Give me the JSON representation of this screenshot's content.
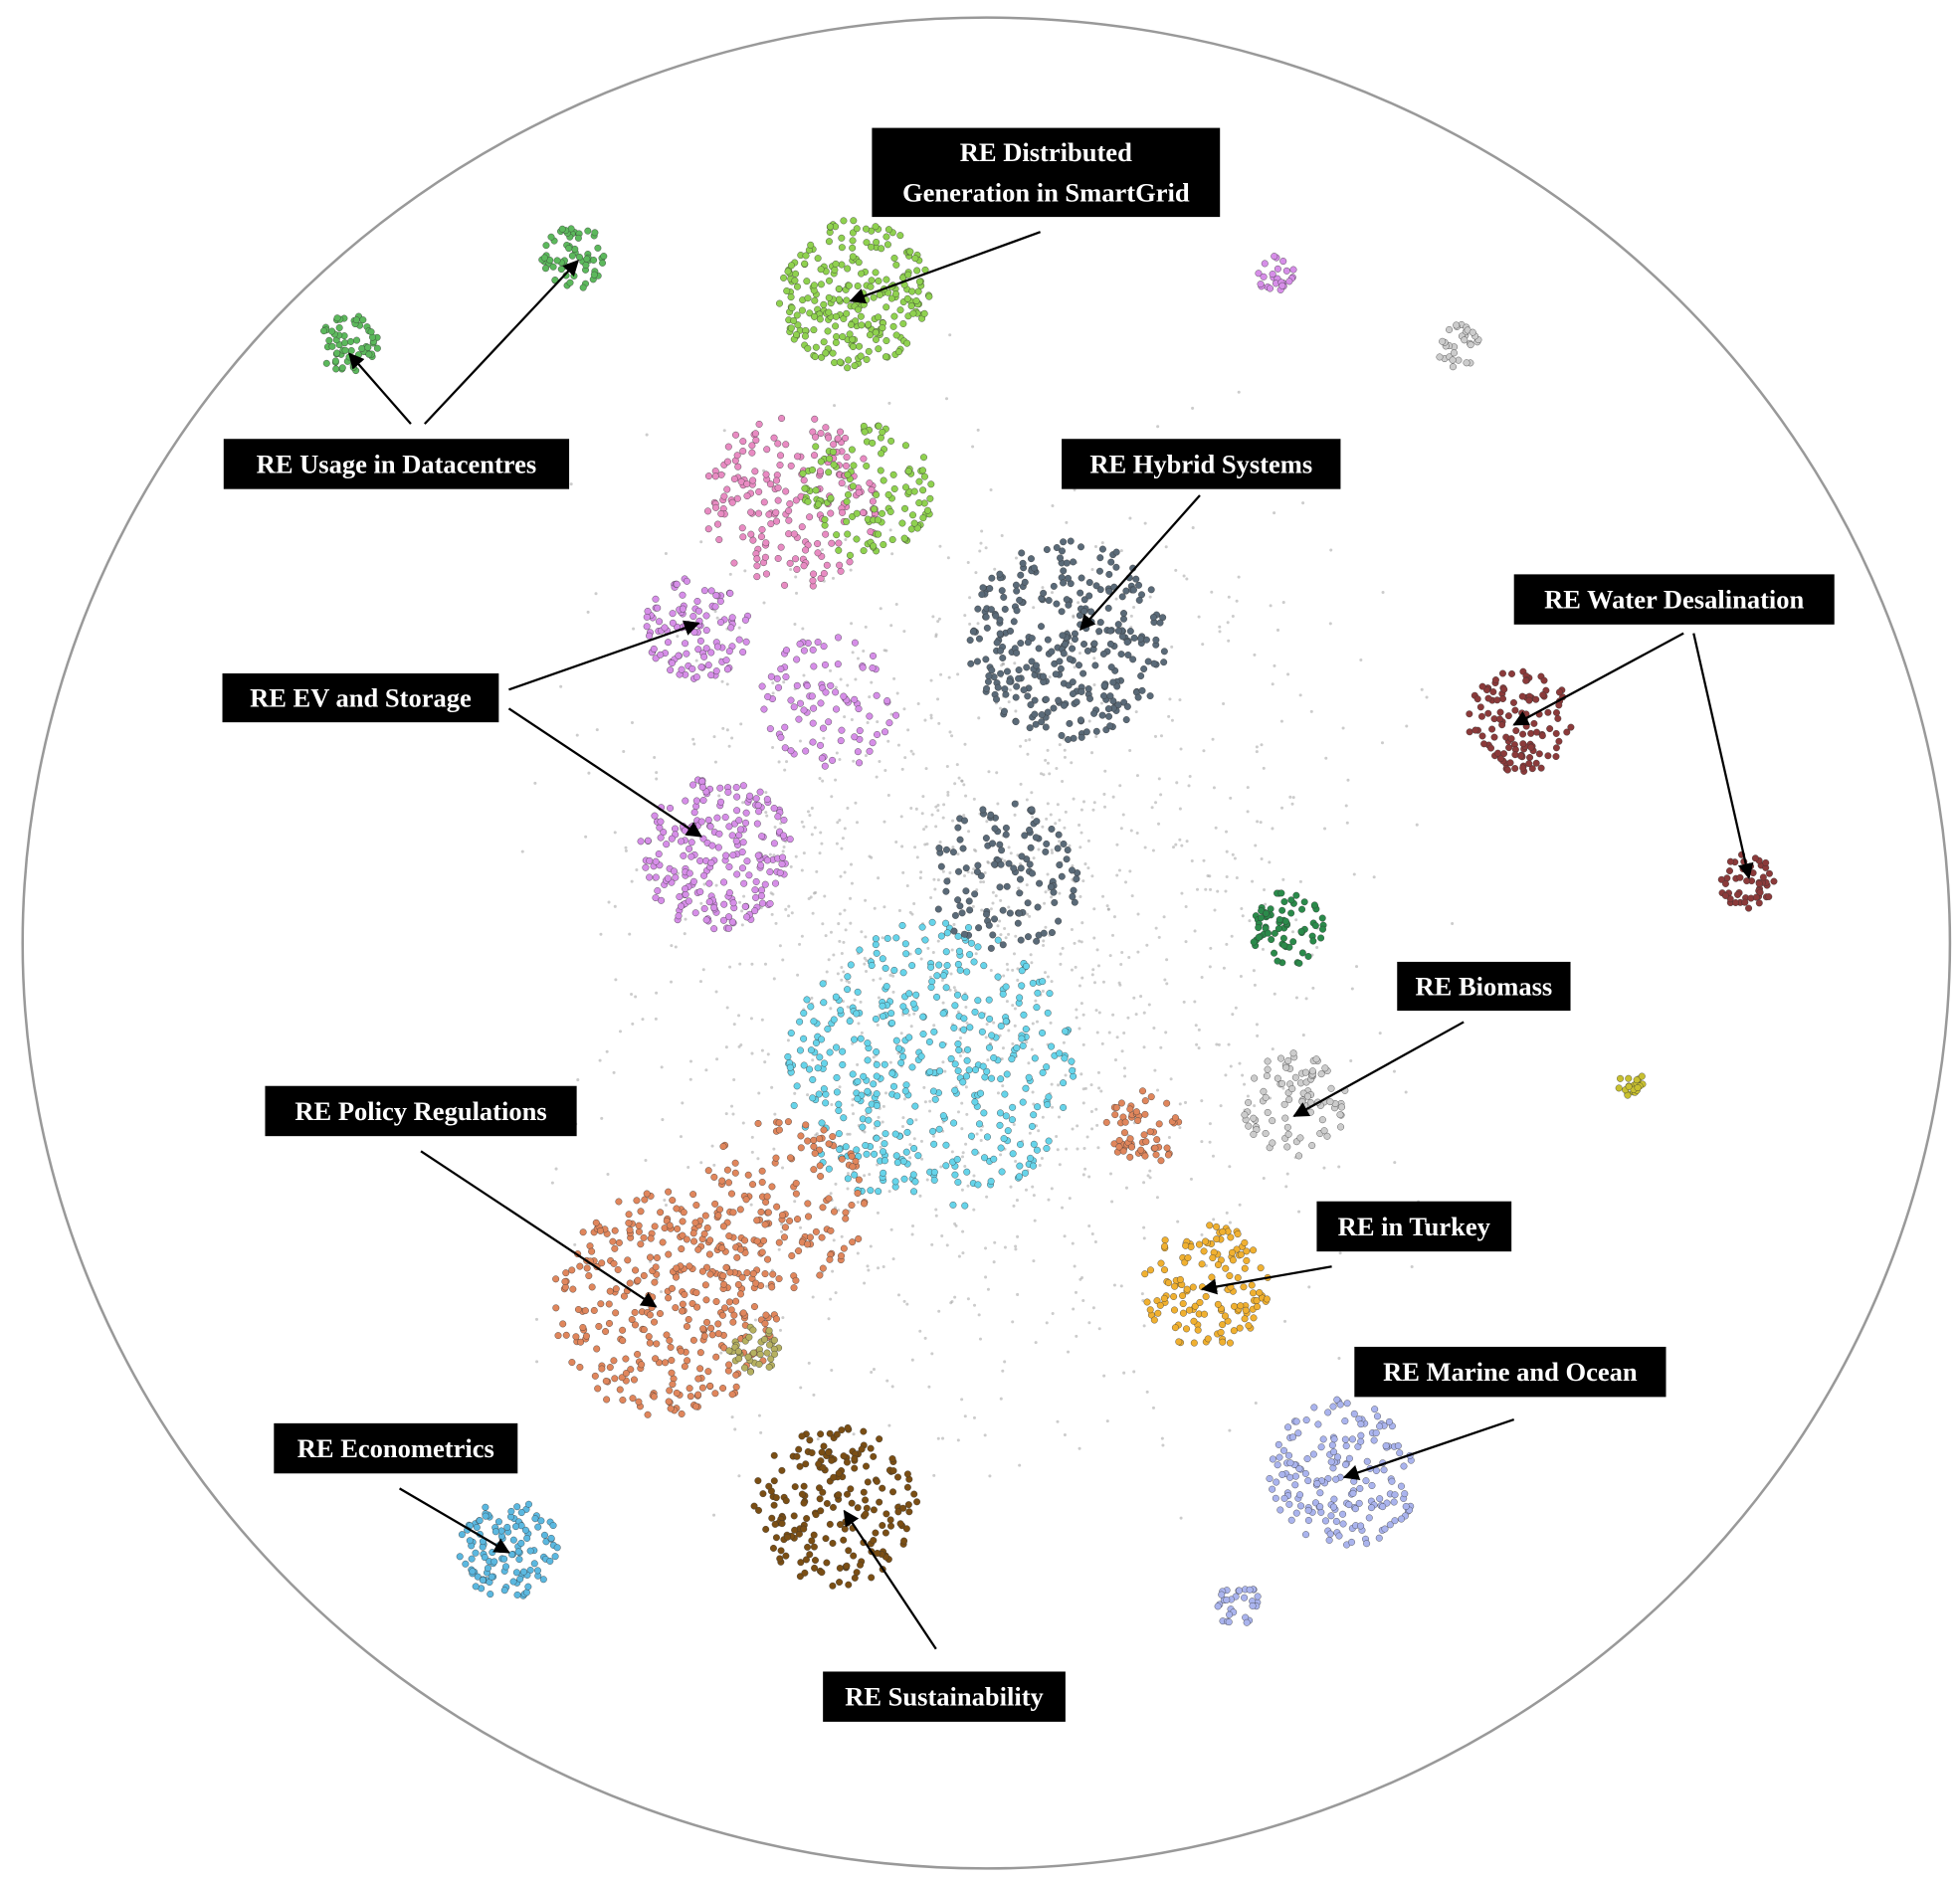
{
  "labels": [
    {
      "lines": [
        "RE Distributed",
        "Generation in SmartGrid"
      ]
    },
    {
      "lines": [
        "RE Usage in Datacentres"
      ]
    },
    {
      "lines": [
        "RE Hybrid Systems"
      ]
    },
    {
      "lines": [
        "RE Water Desalination"
      ]
    },
    {
      "lines": [
        "RE EV and Storage"
      ]
    },
    {
      "lines": [
        "RE Biomass"
      ]
    },
    {
      "lines": [
        "RE Policy Regulations"
      ]
    },
    {
      "lines": [
        "RE in Turkey"
      ]
    },
    {
      "lines": [
        "RE Marine and Ocean"
      ]
    },
    {
      "lines": [
        "RE Econometrics"
      ]
    },
    {
      "lines": [
        "RE Sustainability"
      ]
    }
  ]
}
